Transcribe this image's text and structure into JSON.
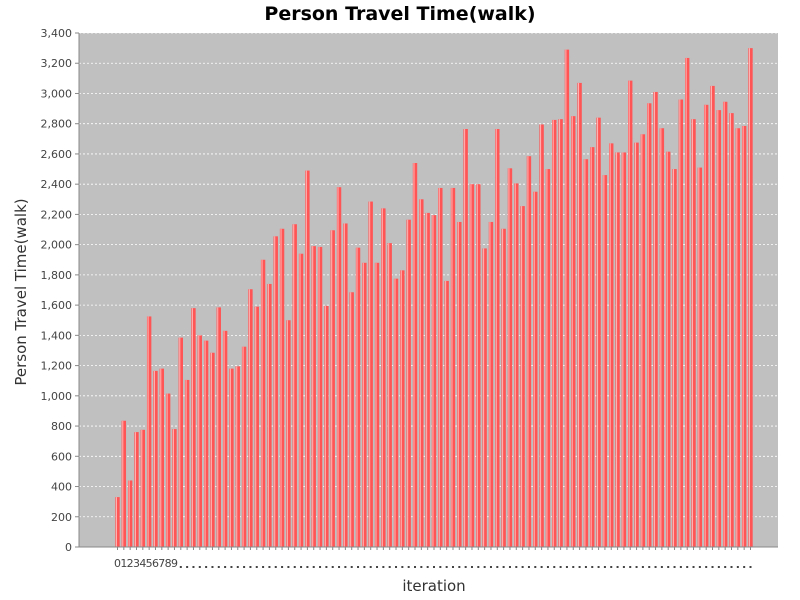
{
  "chart_data": {
    "type": "bar",
    "title": "Person Travel Time(walk)",
    "xlabel": "iteration",
    "ylabel": "Person Travel Time(walk)",
    "ylim": [
      0,
      3400
    ],
    "yticks": [
      0,
      200,
      400,
      600,
      800,
      1000,
      1200,
      1400,
      1600,
      1800,
      2000,
      2200,
      2400,
      2600,
      2800,
      3000,
      3200,
      3400
    ],
    "ytick_labels": [
      "0",
      "200",
      "400",
      "600",
      "800",
      "1,000",
      "1,200",
      "1,400",
      "1,600",
      "1,800",
      "2,000",
      "2,200",
      "2,400",
      "2,600",
      "2,800",
      "3,000",
      "3,200",
      "3,400"
    ],
    "grid": true,
    "legend": "none",
    "bar_color": "#ff5555",
    "plot_background": "#c0c0c0",
    "visible_xtick_labels": [
      "0",
      "1",
      "2",
      "3",
      "4",
      "5",
      "6",
      "7",
      "8",
      "9"
    ],
    "values": [
      330,
      835,
      440,
      760,
      775,
      1525,
      1165,
      1180,
      1015,
      780,
      1385,
      1105,
      1580,
      1400,
      1365,
      1285,
      1585,
      1430,
      1180,
      1195,
      1325,
      1705,
      1590,
      1900,
      1740,
      2055,
      2105,
      1500,
      2135,
      1940,
      2490,
      1990,
      1985,
      1595,
      2095,
      2380,
      2140,
      1685,
      1980,
      1880,
      2285,
      1880,
      2240,
      2010,
      1775,
      1830,
      2165,
      2540,
      2300,
      2210,
      2195,
      2375,
      1760,
      2375,
      2150,
      2765,
      2400,
      2400,
      1975,
      2150,
      2765,
      2105,
      2505,
      2405,
      2255,
      2585,
      2350,
      2795,
      2500,
      2825,
      2830,
      3290,
      2850,
      3070,
      2565,
      2645,
      2840,
      2460,
      2670,
      2610,
      2610,
      3085,
      2675,
      2730,
      2935,
      3010,
      2770,
      2615,
      2500,
      2960,
      3235,
      2830,
      2510,
      2925,
      3050,
      2890,
      2945,
      2870,
      2770,
      2785,
      3300
    ]
  }
}
